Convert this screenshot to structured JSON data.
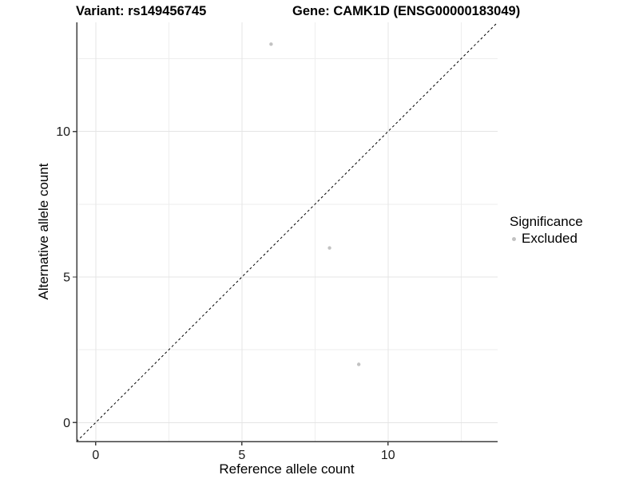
{
  "chart_data": {
    "type": "scatter",
    "titles": {
      "left": "Variant: rs149456745",
      "right": "Gene: CAMK1D (ENSG00000183049)"
    },
    "xlabel": "Reference allele count",
    "ylabel": "Alternative allele count",
    "xlim": [
      -0.65,
      13.75
    ],
    "ylim": [
      -0.65,
      13.75
    ],
    "x_ticks": [
      0,
      5,
      10
    ],
    "y_ticks": [
      0,
      5,
      10
    ],
    "minor_gridlines": [
      2.5,
      7.5,
      12.5
    ],
    "grid": "major and minor horizontal/vertical gridlines, light gray, white panel",
    "series": [
      {
        "name": "Excluded",
        "color": "#c2c2c2",
        "points": [
          {
            "x": 6,
            "y": 13
          },
          {
            "x": 8,
            "y": 6
          },
          {
            "x": 9,
            "y": 2
          }
        ]
      }
    ],
    "identity_line": {
      "type": "abline",
      "slope": 1,
      "intercept": 0,
      "style": "dashed",
      "color": "#000000"
    },
    "legend": {
      "title": "Significance",
      "position": "right",
      "entries": [
        {
          "label": "Excluded",
          "color": "#c2c2c2"
        }
      ]
    }
  },
  "colors": {
    "background": "#ffffff",
    "grid_major": "#e4e4e4",
    "grid_minor": "#eeeeee",
    "axis_line": "#3f3f3f",
    "tick_label": "#1a1a1a",
    "point": "#c2c2c2"
  }
}
